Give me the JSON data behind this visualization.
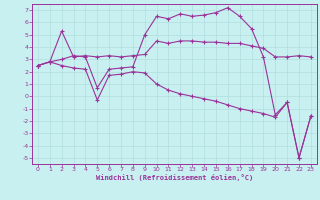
{
  "xlabel": "Windchill (Refroidissement éolien,°C)",
  "xlim": [
    -0.5,
    23.5
  ],
  "ylim": [
    -5.5,
    7.5
  ],
  "xtick_labels": [
    "0",
    "1",
    "2",
    "3",
    "4",
    "5",
    "6",
    "7",
    "8",
    "9",
    "10",
    "11",
    "12",
    "13",
    "14",
    "15",
    "16",
    "17",
    "18",
    "19",
    "20",
    "21",
    "22",
    "23"
  ],
  "ytick_labels": [
    "-5",
    "-4",
    "-3",
    "-2",
    "-1",
    "0",
    "1",
    "2",
    "3",
    "4",
    "5",
    "6",
    "7"
  ],
  "ytick_vals": [
    -5,
    -4,
    -3,
    -2,
    -1,
    0,
    1,
    2,
    3,
    4,
    5,
    6,
    7
  ],
  "xtick_vals": [
    0,
    1,
    2,
    3,
    4,
    5,
    6,
    7,
    8,
    9,
    10,
    11,
    12,
    13,
    14,
    15,
    16,
    17,
    18,
    19,
    20,
    21,
    22,
    23
  ],
  "bg_color": "#c8f0f0",
  "line_color": "#993399",
  "grid_color": "#b0dede",
  "line1_x": [
    0,
    1,
    2,
    3,
    4,
    5,
    6,
    7,
    8,
    9,
    10,
    11,
    12,
    13,
    14,
    15,
    16,
    17,
    18,
    19,
    20,
    21,
    22,
    23
  ],
  "line1_y": [
    2.5,
    2.8,
    5.3,
    3.2,
    3.3,
    3.2,
    3.3,
    3.2,
    3.3,
    3.4,
    4.5,
    4.3,
    4.5,
    4.5,
    4.4,
    4.4,
    4.3,
    4.3,
    4.1,
    3.9,
    3.2,
    3.2,
    3.3,
    3.2
  ],
  "line2_x": [
    0,
    1,
    2,
    3,
    4,
    5,
    6,
    7,
    8,
    9,
    10,
    11,
    12,
    13,
    14,
    15,
    16,
    17,
    18,
    19,
    20,
    21,
    22,
    23
  ],
  "line2_y": [
    2.5,
    2.8,
    3.0,
    3.3,
    3.2,
    0.7,
    2.2,
    2.3,
    2.4,
    5.0,
    6.5,
    6.3,
    6.7,
    6.5,
    6.6,
    6.8,
    7.2,
    6.5,
    5.5,
    3.2,
    -1.5,
    -0.5,
    -5.0,
    -1.6
  ],
  "line3_x": [
    0,
    1,
    2,
    3,
    4,
    5,
    6,
    7,
    8,
    9,
    10,
    11,
    12,
    13,
    14,
    15,
    16,
    17,
    18,
    19,
    20,
    21,
    22,
    23
  ],
  "line3_y": [
    2.5,
    2.8,
    2.5,
    2.3,
    2.2,
    -0.3,
    1.7,
    1.8,
    2.0,
    1.9,
    1.0,
    0.5,
    0.2,
    0.0,
    -0.2,
    -0.4,
    -0.7,
    -1.0,
    -1.2,
    -1.4,
    -1.7,
    -0.5,
    -5.0,
    -1.6
  ]
}
